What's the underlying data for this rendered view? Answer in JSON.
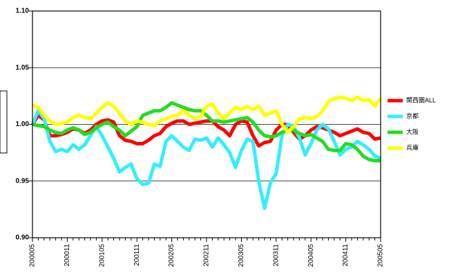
{
  "chart_data": {
    "type": "line",
    "categories": [
      "200005",
      null,
      null,
      null,
      null,
      null,
      "200011",
      null,
      null,
      null,
      null,
      null,
      "200105",
      null,
      null,
      null,
      null,
      null,
      "200111",
      null,
      null,
      null,
      null,
      null,
      "200205",
      null,
      null,
      null,
      null,
      null,
      "200211",
      null,
      null,
      null,
      null,
      null,
      "200305",
      null,
      null,
      null,
      null,
      null,
      "200311",
      null,
      null,
      null,
      null,
      null,
      "200405",
      null,
      null,
      null,
      null,
      null,
      "200411",
      null,
      null,
      null,
      null,
      null,
      "200505"
    ],
    "series": [
      {
        "name": "関西圏ALL",
        "color": "#ff0000",
        "values": [
          1.0,
          1.008,
          1.004,
          0.99,
          0.99,
          0.991,
          0.993,
          0.996,
          0.995,
          0.992,
          0.995,
          1.0,
          1.003,
          1.004,
          1.002,
          0.99,
          0.986,
          0.985,
          0.983,
          0.983,
          0.986,
          0.99,
          0.992,
          0.998,
          1.001,
          1.003,
          1.003,
          1.0,
          1.001,
          1.002,
          1.003,
          1.003,
          0.998,
          0.995,
          0.99,
          1.0,
          1.003,
          1.002,
          0.99,
          0.981,
          0.984,
          0.985,
          0.995,
          1.0,
          1.0,
          0.993,
          0.987,
          0.99,
          0.995,
          0.998,
          0.997,
          0.995,
          0.993,
          0.99,
          0.992,
          0.994,
          0.996,
          0.993,
          0.992,
          0.987,
          0.988
        ]
      },
      {
        "name": "京都",
        "color": "#33eeff",
        "values": [
          1.0,
          1.012,
          1.005,
          0.985,
          0.976,
          0.978,
          0.976,
          0.982,
          0.978,
          0.982,
          0.99,
          0.998,
          0.99,
          0.98,
          0.97,
          0.958,
          0.962,
          0.965,
          0.952,
          0.947,
          0.948,
          0.965,
          0.963,
          0.985,
          0.99,
          0.985,
          0.98,
          0.977,
          0.987,
          0.986,
          0.988,
          0.98,
          0.988,
          0.982,
          0.975,
          0.962,
          0.977,
          0.987,
          0.985,
          0.95,
          0.926,
          0.948,
          0.957,
          0.99,
          1.0,
          0.998,
          0.988,
          0.973,
          0.983,
          0.995,
          1.0,
          0.996,
          0.985,
          0.973,
          0.978,
          0.98,
          0.985,
          0.982,
          0.978,
          0.972,
          0.97
        ]
      },
      {
        "name": "大阪",
        "color": "#22dd22",
        "values": [
          1.0,
          0.999,
          0.998,
          0.995,
          0.993,
          0.992,
          0.995,
          0.997,
          0.995,
          0.991,
          0.993,
          0.997,
          1.0,
          1.002,
          0.998,
          0.995,
          0.99,
          0.994,
          0.998,
          1.008,
          1.01,
          1.012,
          1.012,
          1.015,
          1.019,
          1.017,
          1.015,
          1.013,
          1.012,
          1.012,
          1.008,
          1.003,
          1.003,
          1.002,
          1.003,
          1.004,
          1.005,
          1.006,
          1.002,
          0.995,
          0.99,
          0.989,
          0.99,
          0.993,
          0.995,
          0.995,
          0.992,
          0.99,
          0.991,
          0.988,
          0.985,
          0.978,
          0.977,
          0.977,
          0.983,
          0.982,
          0.978,
          0.972,
          0.969,
          0.968,
          0.968
        ]
      },
      {
        "name": "兵庫",
        "color": "#ffff00",
        "values": [
          1.017,
          1.015,
          1.008,
          1.003,
          1.0,
          1.001,
          1.002,
          1.006,
          1.008,
          1.006,
          1.005,
          1.01,
          1.015,
          1.019,
          1.016,
          1.01,
          1.003,
          1.0,
          1.003,
          1.002,
          1.0,
          0.999,
          1.003,
          1.005,
          1.007,
          1.008,
          1.012,
          1.008,
          1.005,
          1.007,
          1.016,
          1.018,
          1.01,
          1.005,
          1.01,
          1.015,
          1.013,
          1.016,
          1.013,
          1.016,
          1.008,
          1.01,
          1.012,
          1.0,
          0.993,
          0.998,
          1.005,
          1.006,
          1.005,
          1.007,
          1.012,
          1.02,
          1.023,
          1.024,
          1.023,
          1.021,
          1.024,
          1.021,
          1.022,
          1.016,
          1.023
        ]
      }
    ],
    "ylim": [
      0.9,
      1.1
    ],
    "yticks": [
      {
        "value": 0.9,
        "label": "0.90"
      },
      0.95,
      {
        "value": 1.0,
        "label": "1.00"
      },
      1.05,
      {
        "value": 1.1,
        "label": "1.10"
      }
    ],
    "grid": true,
    "legend": "right"
  }
}
